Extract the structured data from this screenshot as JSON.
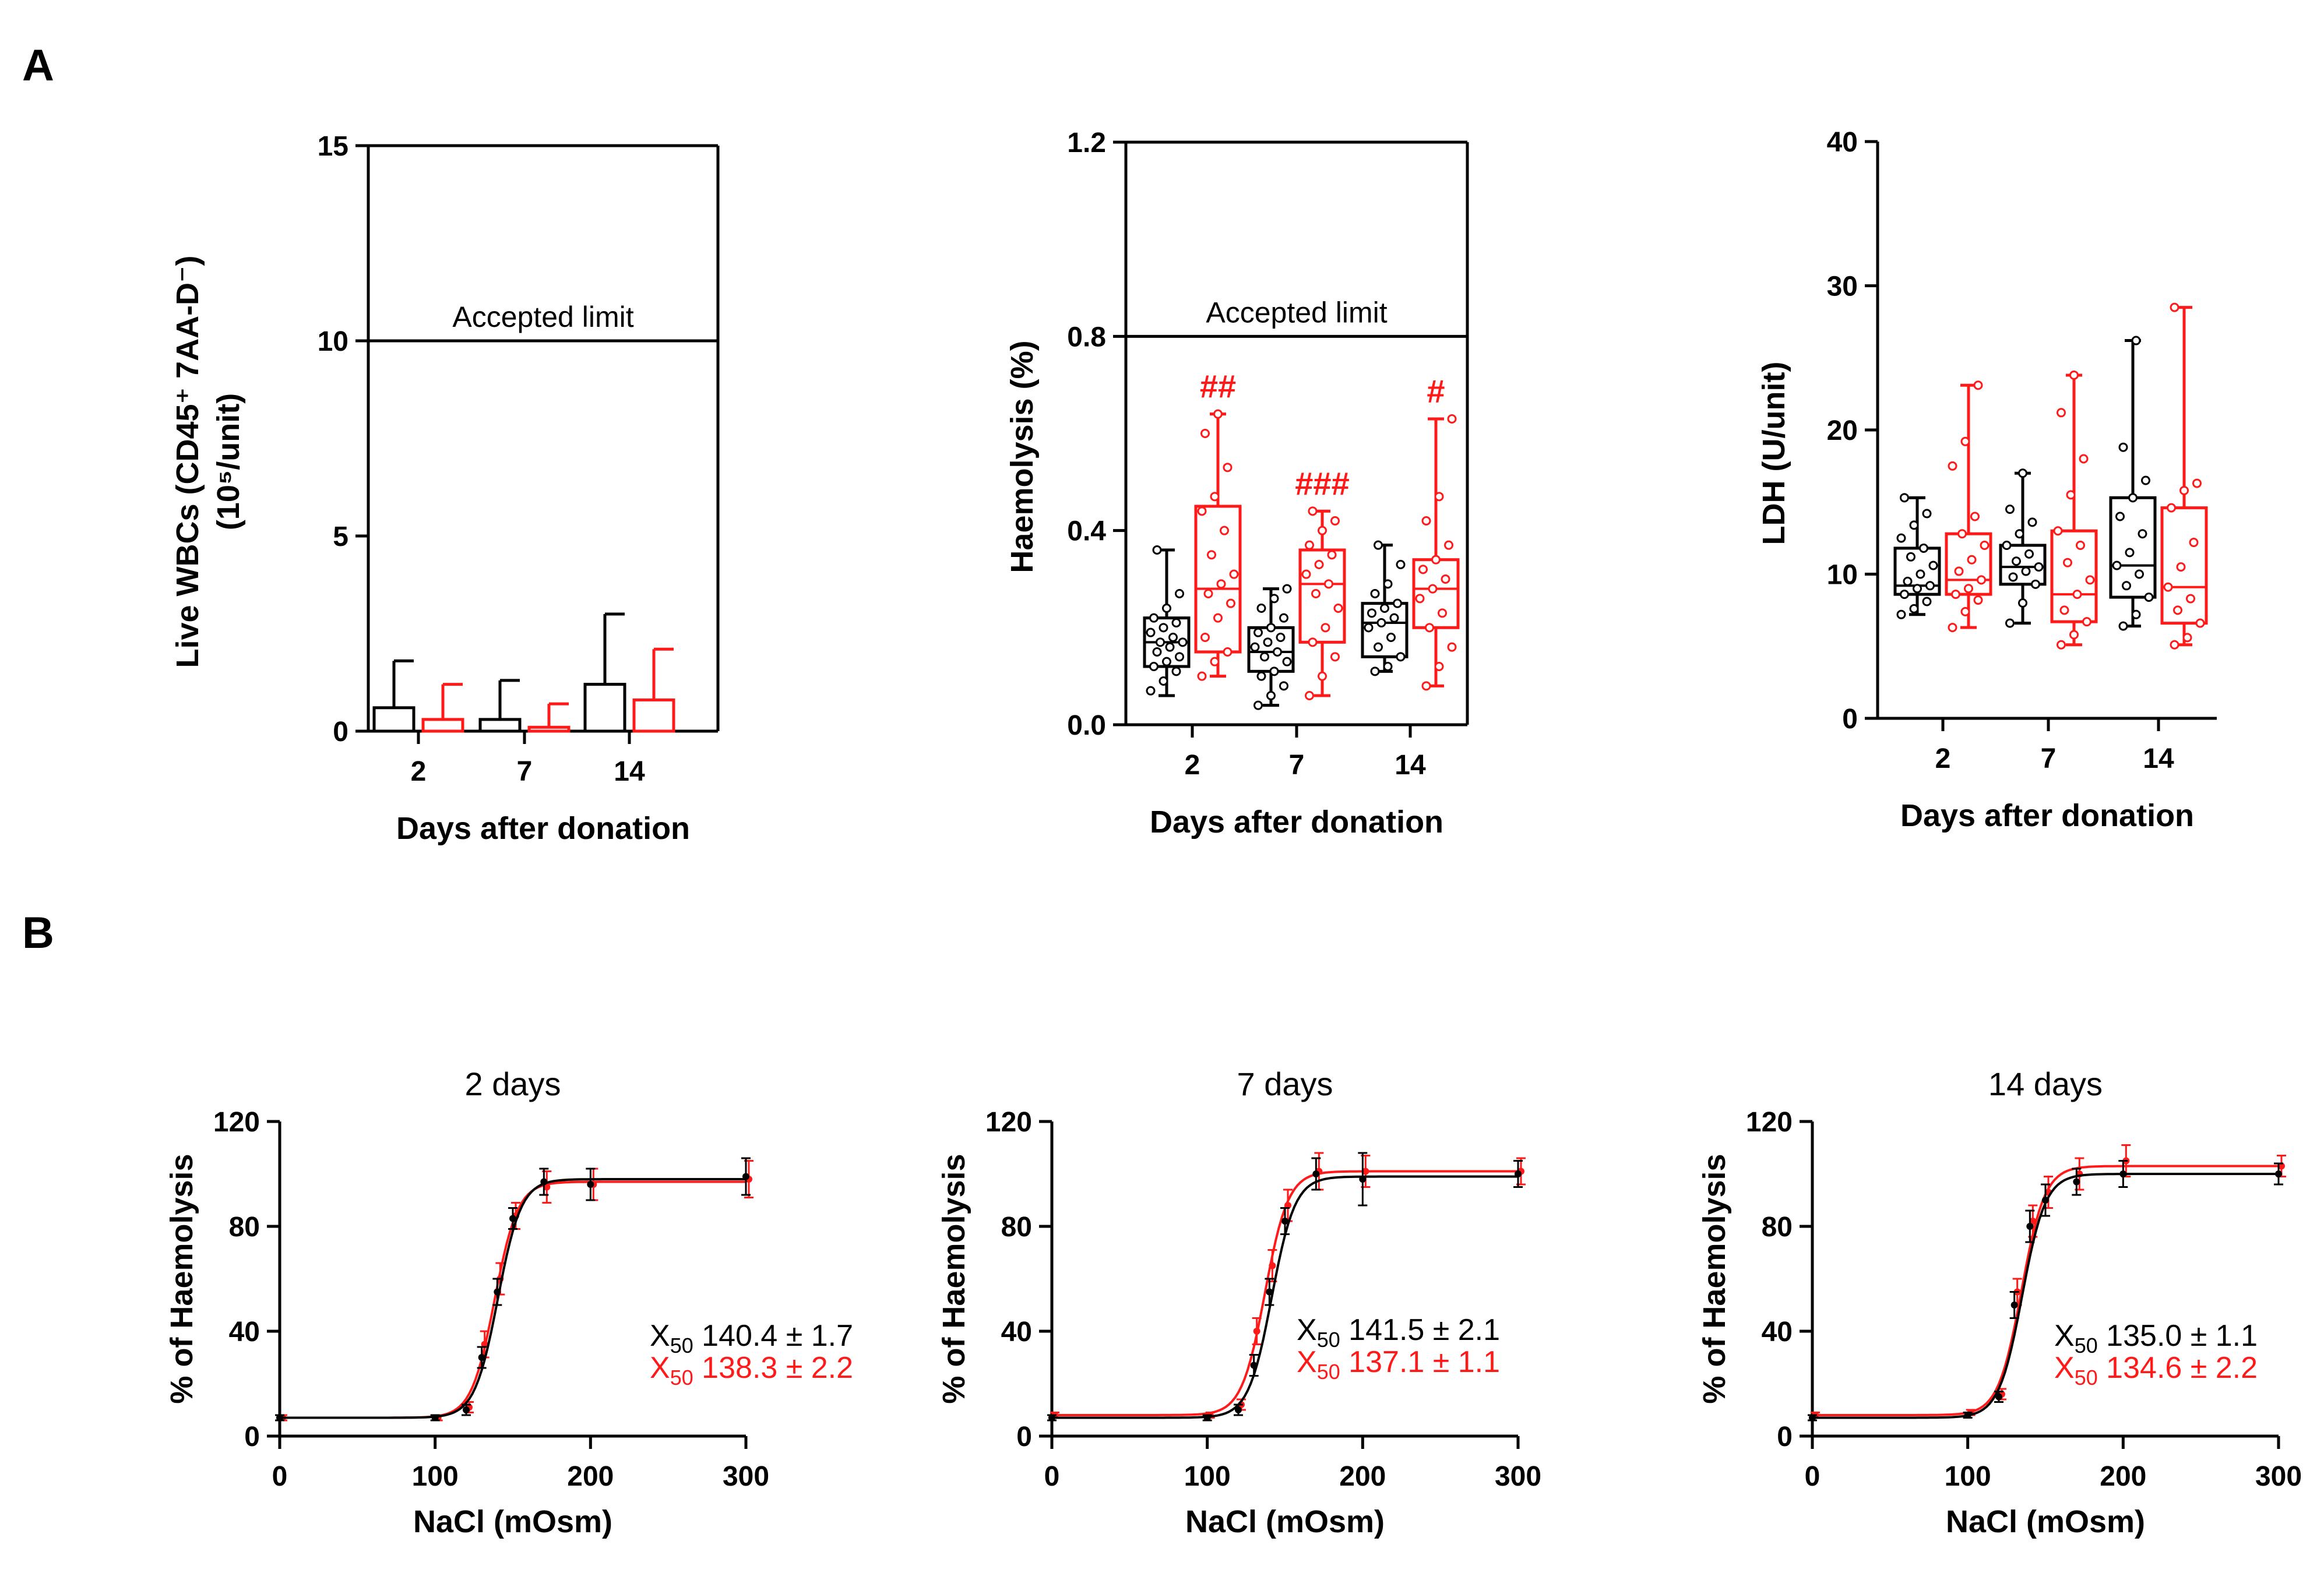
{
  "panel_labels": [
    "A",
    "B"
  ],
  "colors": {
    "control": "#000000",
    "treated": "#ff1a1a"
  },
  "chart_data": [
    {
      "id": "wbc",
      "type": "bar",
      "ylabel_line1": "Live WBCs (CD45⁺ 7AA-D⁻)",
      "ylabel_line2": "(10⁵/unit)",
      "xlabel": "Days after donation",
      "categories": [
        "2",
        "7",
        "14"
      ],
      "ylim": [
        0,
        15
      ],
      "yticks": [
        "0",
        "5",
        "10",
        "15"
      ],
      "reference_line": {
        "value": 10,
        "label": "Accepted limit"
      },
      "series": [
        {
          "name": "control",
          "values": [
            0.6,
            0.3,
            1.2
          ],
          "errors": [
            1.2,
            1.0,
            1.8
          ]
        },
        {
          "name": "treated",
          "values": [
            0.3,
            0.1,
            0.8
          ],
          "errors": [
            0.9,
            0.6,
            1.3
          ]
        }
      ]
    },
    {
      "id": "haemolysis",
      "type": "box",
      "ylabel": "Haemolysis (%)",
      "xlabel": "Days after donation",
      "categories": [
        "2",
        "7",
        "14"
      ],
      "ylim": [
        0,
        1.2
      ],
      "yticks": [
        "0.0",
        "0.4",
        "0.8",
        "1.2"
      ],
      "reference_line": {
        "value": 0.8,
        "label": "Accepted limit"
      },
      "annotations": [
        "##",
        "###",
        "#"
      ],
      "series": [
        {
          "name": "control",
          "boxes": [
            {
              "min": 0.06,
              "q1": 0.12,
              "median": 0.17,
              "q3": 0.22,
              "max": 0.36,
              "points": [
                0.07,
                0.09,
                0.11,
                0.12,
                0.13,
                0.14,
                0.15,
                0.16,
                0.17,
                0.17,
                0.18,
                0.19,
                0.2,
                0.21,
                0.22,
                0.24,
                0.27,
                0.36
              ]
            },
            {
              "min": 0.04,
              "q1": 0.11,
              "median": 0.15,
              "q3": 0.2,
              "max": 0.28,
              "points": [
                0.04,
                0.06,
                0.08,
                0.1,
                0.11,
                0.13,
                0.14,
                0.15,
                0.16,
                0.17,
                0.18,
                0.19,
                0.2,
                0.22,
                0.24,
                0.26,
                0.28
              ]
            },
            {
              "min": 0.11,
              "q1": 0.14,
              "median": 0.21,
              "q3": 0.25,
              "max": 0.37,
              "points": [
                0.11,
                0.12,
                0.14,
                0.16,
                0.18,
                0.2,
                0.21,
                0.22,
                0.23,
                0.24,
                0.25,
                0.27,
                0.29,
                0.33,
                0.37
              ]
            }
          ]
        },
        {
          "name": "treated",
          "boxes": [
            {
              "min": 0.1,
              "q1": 0.15,
              "median": 0.28,
              "q3": 0.45,
              "max": 0.64,
              "points": [
                0.1,
                0.13,
                0.15,
                0.18,
                0.22,
                0.25,
                0.27,
                0.29,
                0.31,
                0.35,
                0.4,
                0.44,
                0.47,
                0.53,
                0.6,
                0.64
              ]
            },
            {
              "min": 0.06,
              "q1": 0.17,
              "median": 0.29,
              "q3": 0.36,
              "max": 0.44,
              "points": [
                0.06,
                0.1,
                0.14,
                0.17,
                0.2,
                0.24,
                0.27,
                0.29,
                0.31,
                0.33,
                0.35,
                0.37,
                0.4,
                0.42,
                0.44
              ]
            },
            {
              "min": 0.08,
              "q1": 0.2,
              "median": 0.28,
              "q3": 0.34,
              "max": 0.63,
              "points": [
                0.08,
                0.12,
                0.16,
                0.2,
                0.23,
                0.26,
                0.28,
                0.3,
                0.32,
                0.34,
                0.37,
                0.42,
                0.47,
                0.63
              ]
            }
          ]
        }
      ]
    },
    {
      "id": "ldh",
      "type": "box",
      "ylabel": "LDH (U/unit)",
      "xlabel": "Days after donation",
      "categories": [
        "2",
        "7",
        "14"
      ],
      "ylim": [
        0,
        40
      ],
      "yticks": [
        "0",
        "10",
        "20",
        "30",
        "40"
      ],
      "series": [
        {
          "name": "control",
          "boxes": [
            {
              "min": 7.2,
              "q1": 8.6,
              "median": 9.2,
              "q3": 11.8,
              "max": 15.3,
              "points": [
                7.2,
                7.6,
                8.1,
                8.6,
                9.0,
                9.2,
                9.5,
                10.0,
                10.6,
                11.2,
                11.8,
                12.5,
                13.4,
                14.2,
                15.3
              ]
            },
            {
              "min": 6.6,
              "q1": 9.3,
              "median": 10.5,
              "q3": 12.0,
              "max": 17.0,
              "points": [
                6.6,
                8.0,
                9.3,
                9.8,
                10.2,
                10.5,
                10.9,
                11.4,
                12.0,
                12.8,
                13.6,
                14.5,
                17.0
              ]
            },
            {
              "min": 6.4,
              "q1": 8.4,
              "median": 10.6,
              "q3": 15.3,
              "max": 26.2,
              "points": [
                6.4,
                7.2,
                8.4,
                9.2,
                10.0,
                10.6,
                11.5,
                12.8,
                14.0,
                15.3,
                16.5,
                18.8,
                26.2
              ]
            }
          ]
        },
        {
          "name": "treated",
          "boxes": [
            {
              "min": 6.3,
              "q1": 8.6,
              "median": 9.6,
              "q3": 12.8,
              "max": 23.1,
              "points": [
                6.3,
                7.4,
                8.2,
                8.6,
                9.0,
                9.6,
                10.2,
                11.0,
                12.0,
                12.8,
                14.0,
                17.5,
                19.2,
                23.1
              ]
            },
            {
              "min": 5.1,
              "q1": 6.7,
              "median": 8.6,
              "q3": 13.0,
              "max": 23.8,
              "points": [
                5.1,
                5.8,
                6.7,
                7.5,
                8.6,
                9.6,
                10.8,
                12.0,
                13.0,
                15.5,
                18.0,
                21.2,
                23.8
              ]
            },
            {
              "min": 5.1,
              "q1": 6.6,
              "median": 9.1,
              "q3": 14.6,
              "max": 28.5,
              "points": [
                5.1,
                5.6,
                6.6,
                7.5,
                8.3,
                9.1,
                10.5,
                12.2,
                14.6,
                15.8,
                16.3,
                28.5
              ]
            }
          ]
        }
      ]
    },
    {
      "id": "osmotic-2d",
      "type": "line",
      "title": "2 days",
      "ylabel": "% of Haemolysis",
      "xlabel": "NaCl (mOsm)",
      "xlim": [
        0,
        300
      ],
      "ylim": [
        0,
        120
      ],
      "xticks": [
        "0",
        "100",
        "200",
        "300"
      ],
      "yticks": [
        "0",
        "40",
        "80",
        "120"
      ],
      "x": [
        0,
        100,
        120,
        130,
        140,
        150,
        170,
        200,
        300
      ],
      "series": [
        {
          "name": "control",
          "x50_label": "X",
          "x50_sub": "50",
          "x50_value": "140.4 ± 1.7",
          "bottom": 7,
          "top": 98,
          "x50": 140.4,
          "values": [
            7,
            7,
            10,
            30,
            55,
            83,
            97,
            96,
            99
          ],
          "errors": [
            1,
            1,
            2,
            4,
            5,
            4,
            5,
            6,
            7
          ]
        },
        {
          "name": "treated",
          "x50_label": "X",
          "x50_sub": "50",
          "x50_value": "138.3 ± 2.2",
          "bottom": 7,
          "top": 97,
          "x50": 138.3,
          "values": [
            7,
            7,
            11,
            35,
            60,
            84,
            95,
            96,
            98
          ],
          "errors": [
            1,
            1,
            2,
            5,
            6,
            5,
            6,
            6,
            7
          ]
        }
      ]
    },
    {
      "id": "osmotic-7d",
      "type": "line",
      "title": "7 days",
      "ylabel": "% of Haemolysis",
      "xlabel": "NaCl (mOsm)",
      "xlim": [
        0,
        300
      ],
      "ylim": [
        0,
        120
      ],
      "xticks": [
        "0",
        "100",
        "200",
        "300"
      ],
      "yticks": [
        "0",
        "40",
        "80",
        "120"
      ],
      "x": [
        0,
        100,
        120,
        130,
        140,
        150,
        170,
        200,
        300
      ],
      "series": [
        {
          "name": "control",
          "x50_label": "X",
          "x50_sub": "50",
          "x50_value": "141.5 ± 2.1",
          "bottom": 7,
          "top": 99,
          "x50": 141.5,
          "values": [
            7,
            7,
            10,
            27,
            55,
            82,
            100,
            98,
            100
          ],
          "errors": [
            1,
            1,
            2,
            4,
            5,
            5,
            6,
            10,
            5
          ]
        },
        {
          "name": "treated",
          "x50_label": "X",
          "x50_sub": "50",
          "x50_value": "137.1 ± 1.1",
          "bottom": 8,
          "top": 101,
          "x50": 137.1,
          "values": [
            8,
            8,
            12,
            40,
            65,
            88,
            101,
            101,
            101
          ],
          "errors": [
            1,
            1,
            2,
            5,
            6,
            6,
            7,
            6,
            5
          ]
        }
      ]
    },
    {
      "id": "osmotic-14d",
      "type": "line",
      "title": "14 days",
      "ylabel": "% of Haemolysis",
      "xlabel": "NaCl (mOsm)",
      "xlim": [
        0,
        300
      ],
      "ylim": [
        0,
        120
      ],
      "xticks": [
        "0",
        "100",
        "200",
        "300"
      ],
      "yticks": [
        "0",
        "40",
        "80",
        "120"
      ],
      "x": [
        0,
        100,
        120,
        130,
        140,
        150,
        170,
        200,
        300
      ],
      "series": [
        {
          "name": "control",
          "x50_label": "X",
          "x50_sub": "50",
          "x50_value": "135.0 ± 1.1",
          "bottom": 7,
          "top": 100,
          "x50": 135.0,
          "values": [
            7,
            8,
            15,
            50,
            80,
            90,
            97,
            100,
            100
          ],
          "errors": [
            1,
            1,
            2,
            5,
            6,
            6,
            5,
            5,
            4
          ]
        },
        {
          "name": "treated",
          "x50_label": "X",
          "x50_sub": "50",
          "x50_value": "134.6 ± 2.2",
          "bottom": 8,
          "top": 103,
          "x50": 134.6,
          "values": [
            8,
            9,
            16,
            55,
            82,
            93,
            100,
            105,
            103
          ],
          "errors": [
            1,
            1,
            2,
            5,
            6,
            6,
            6,
            6,
            4
          ]
        }
      ]
    }
  ]
}
